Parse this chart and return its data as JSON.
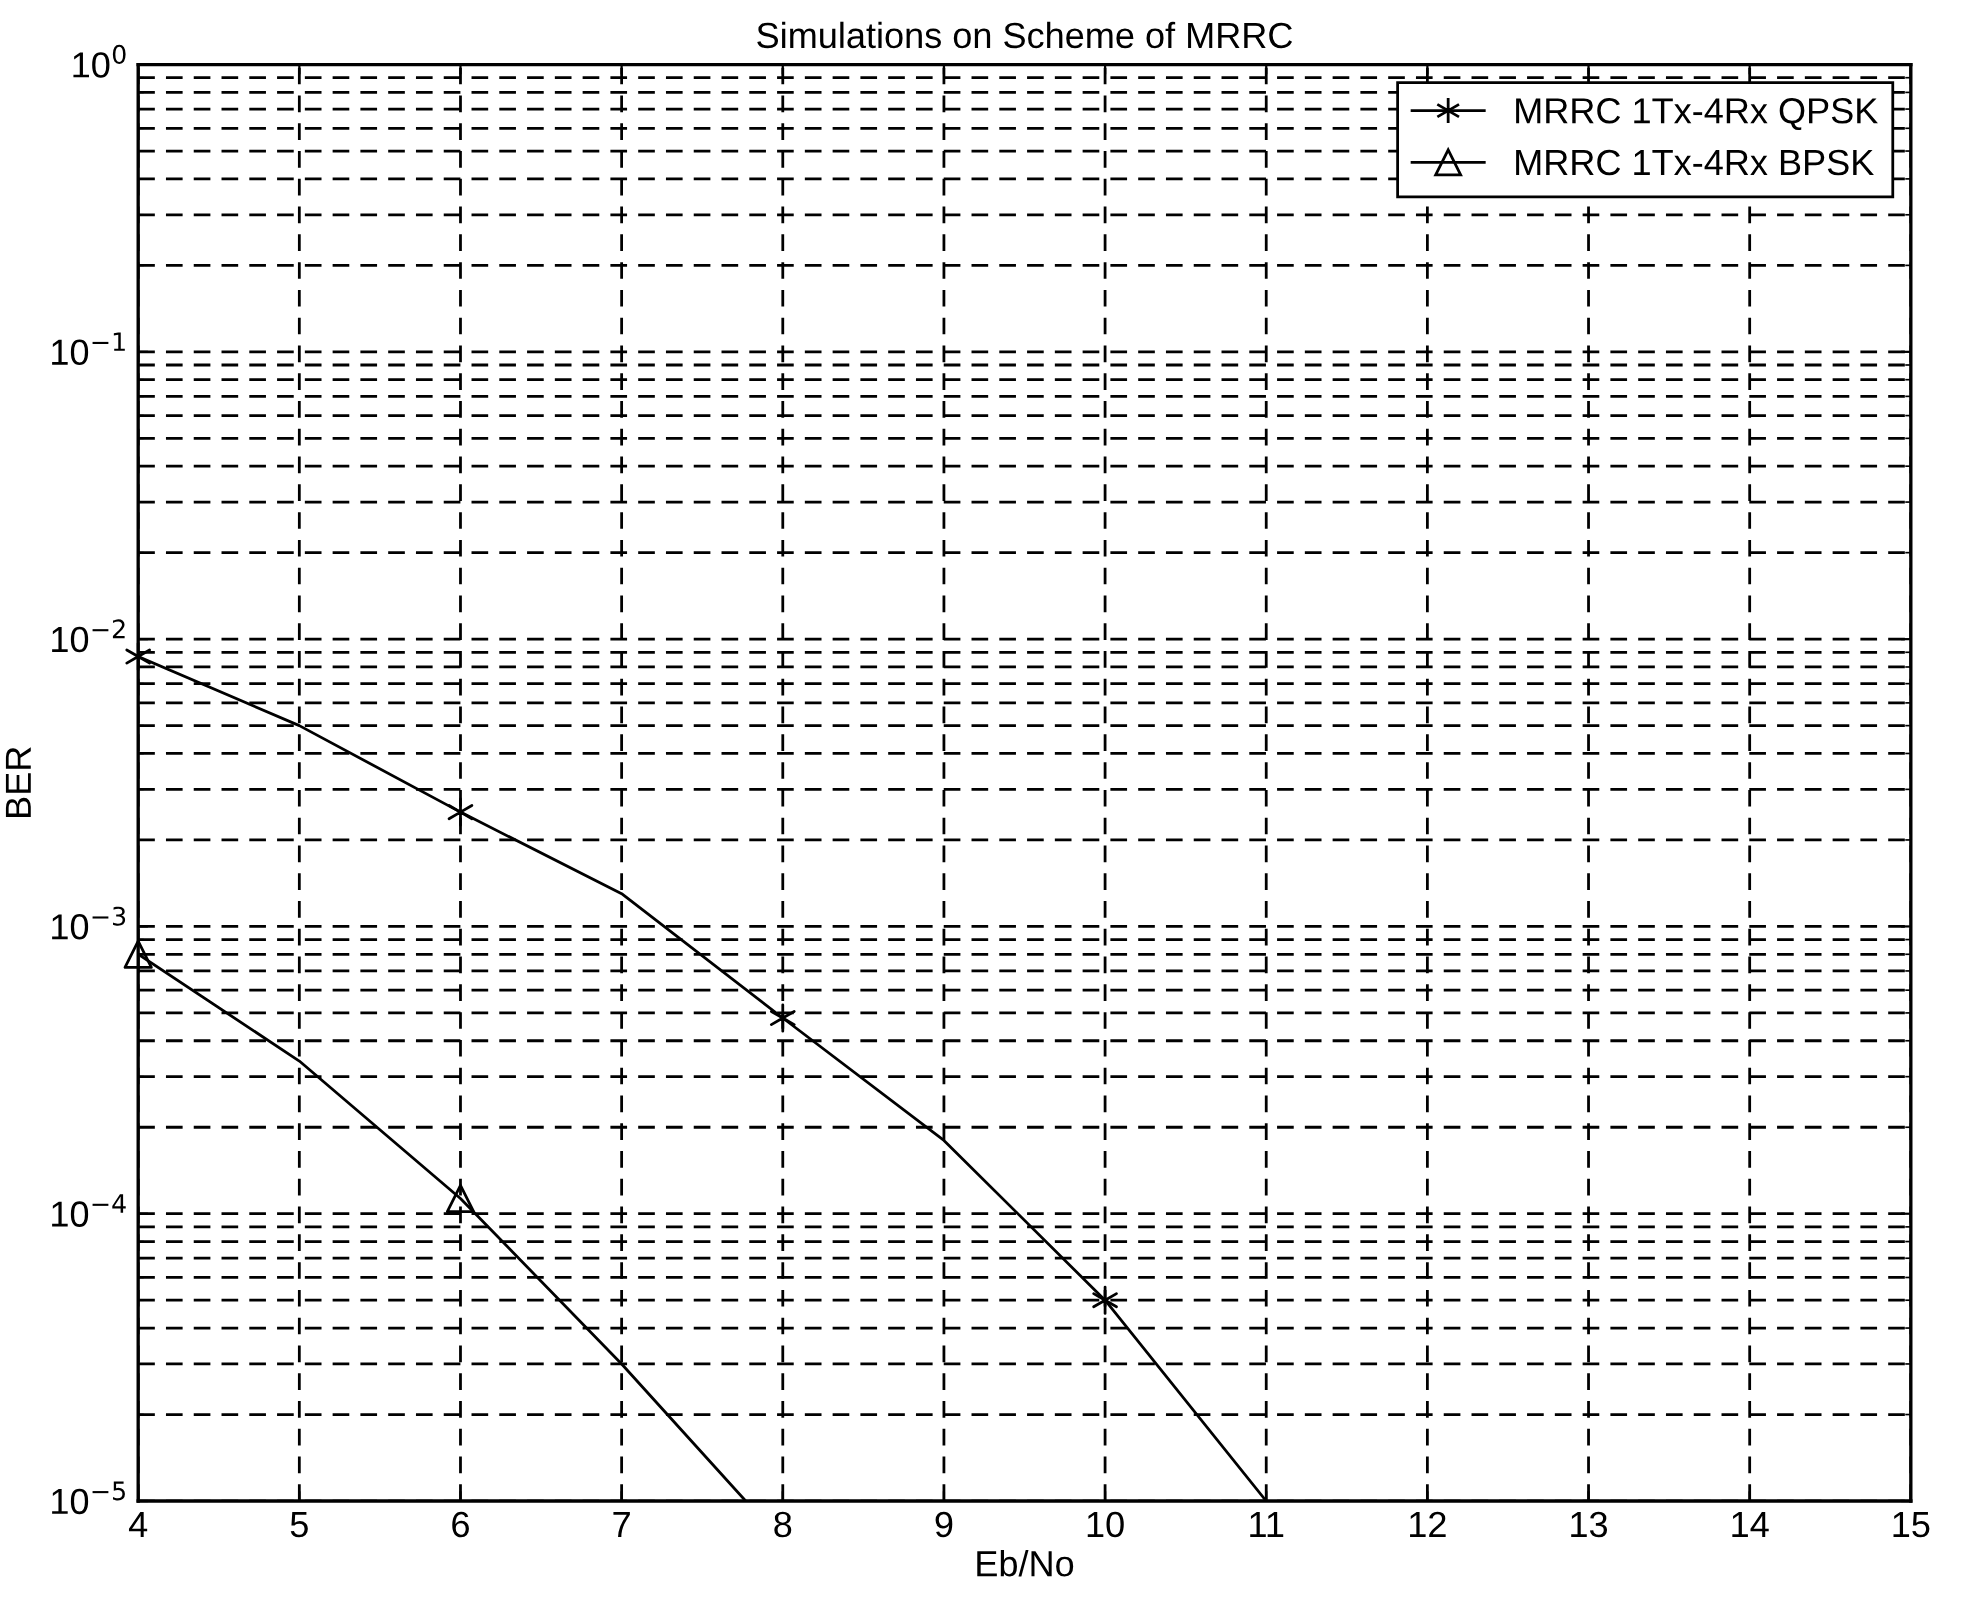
{
  "chart_data": {
    "type": "line",
    "title": "Simulations on Scheme of MRRC",
    "xlabel": "Eb/No",
    "ylabel": "BER",
    "log": "y",
    "grid": true,
    "legend": "top right",
    "line_style": "solid",
    "xlim": [
      4,
      15
    ],
    "xticks": [
      4,
      5,
      6,
      7,
      8,
      9,
      10,
      11,
      12,
      13,
      14,
      15
    ],
    "ylim": [
      1e-05,
      1
    ],
    "yticks": [
      {
        "value": 1e-05,
        "label": "10$^{−5}$"
      },
      {
        "value": 0.0001,
        "label": "10$^{−4}$"
      },
      {
        "value": 0.001,
        "label": "10$^{−3}$"
      },
      {
        "value": 0.01,
        "label": "10$^{−2}$"
      },
      {
        "value": 0.1,
        "label": "10$^{−1}$"
      },
      {
        "value": 1,
        "label": "10$^{0}$"
      }
    ],
    "series": [
      {
        "color": "#000000",
        "x": [
          4,
          5,
          6,
          7,
          8,
          9,
          10,
          11
        ],
        "values": [
          0.0087,
          0.005,
          0.0025,
          0.0013,
          0.00048,
          0.00018,
          5e-05,
          1e-05
        ]
      },
      {
        "color": "#000000",
        "x": [
          4,
          5,
          6,
          7,
          7.77
        ],
        "values": [
          0.0008,
          0.00034,
          0.000113,
          3e-05,
          1e-05
        ]
      },
      {
        "type": "scatter",
        "name": "MRRC 1Tx-4Rx QPSK",
        "color": "#000000",
        "marker": "cross",
        "x": [
          4,
          6,
          8,
          10
        ],
        "values": [
          0.0087,
          0.0025,
          0.00048,
          5e-05
        ]
      },
      {
        "type": "scatter",
        "name": "MRRC 1Tx-4Rx BPSK",
        "color": "#000000",
        "marker": "triangle",
        "x": [
          4,
          6
        ],
        "values": [
          0.0008,
          0.000113
        ]
      }
    ]
  }
}
